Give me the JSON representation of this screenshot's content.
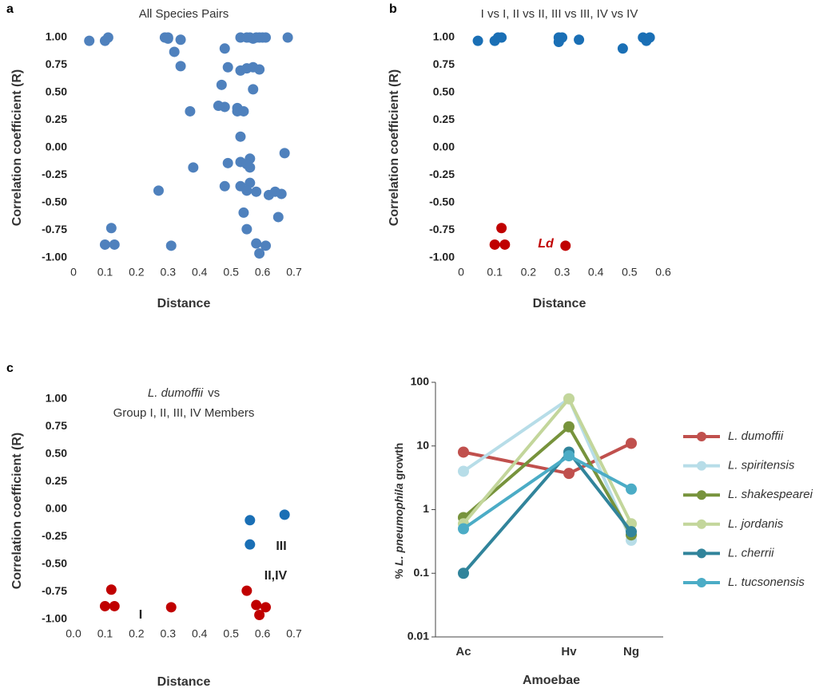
{
  "chart_data": [
    {
      "type": "scatter",
      "label": "a",
      "title": "All Species Pairs",
      "xlabel": "Distance",
      "ylabel": "Correlation coefficient (R)",
      "xlim": [
        0,
        0.7
      ],
      "xticks": [
        0,
        0.1,
        0.2,
        0.3,
        0.4,
        0.5,
        0.6,
        0.7
      ],
      "ylim": [
        -1,
        1
      ],
      "yticks": [
        {
          "value": 1,
          "label": "1.00"
        },
        {
          "value": 0.75,
          "label": "0.75"
        },
        {
          "value": 0.5,
          "label": "0.50"
        },
        {
          "value": 0.25,
          "label": "0.25"
        },
        {
          "value": 0,
          "label": "0.00"
        },
        {
          "value": -0.25,
          "label": "-0.25"
        },
        {
          "value": -0.5,
          "label": "-0.50"
        },
        {
          "value": -0.75,
          "label": "-0.75"
        },
        {
          "value": -1,
          "label": "-1.00"
        }
      ],
      "series": [
        {
          "color": "#4f81bd",
          "x": [
            0.05,
            0.1,
            0.11,
            0.29,
            0.3,
            0.3,
            0.32,
            0.34,
            0.34,
            0.48,
            0.49,
            0.47,
            0.48,
            0.46,
            0.52,
            0.52,
            0.54,
            0.53,
            0.55,
            0.57,
            0.59,
            0.57,
            0.53,
            0.55,
            0.56,
            0.57,
            0.58,
            0.59,
            0.6,
            0.61,
            0.68,
            0.37,
            0.38,
            0.53,
            0.53,
            0.56,
            0.55,
            0.67,
            0.49,
            0.27,
            0.48,
            0.53,
            0.56,
            0.55,
            0.58,
            0.56,
            0.54,
            0.55,
            0.62,
            0.64,
            0.66,
            0.65,
            0.1,
            0.12,
            0.13,
            0.31,
            0.58,
            0.61,
            0.59
          ],
          "values": [
            0.97,
            0.97,
            1.0,
            1.0,
            0.99,
            1.0,
            0.87,
            0.98,
            0.74,
            0.9,
            0.73,
            0.57,
            0.37,
            0.38,
            0.36,
            0.33,
            0.33,
            0.7,
            0.72,
            0.73,
            0.71,
            0.53,
            1.0,
            1.0,
            1.0,
            0.99,
            1.0,
            1.0,
            1.0,
            1.0,
            1.0,
            0.33,
            -0.18,
            0.1,
            -0.13,
            -0.1,
            -0.15,
            -0.05,
            -0.14,
            -0.39,
            -0.35,
            -0.35,
            -0.32,
            -0.39,
            -0.4,
            -0.18,
            -0.59,
            -0.74,
            -0.43,
            -0.4,
            -0.42,
            -0.63,
            -0.88,
            -0.73,
            -0.88,
            -0.89,
            -0.87,
            -0.89,
            -0.96
          ]
        }
      ]
    },
    {
      "type": "scatter",
      "label": "b",
      "title": "I vs I, II vs II, III vs III, IV vs IV",
      "xlabel": "Distance",
      "ylabel": "Correlation coefficient (R)",
      "xlim": [
        0,
        0.6
      ],
      "xticks": [
        0,
        0.1,
        0.2,
        0.3,
        0.4,
        0.5,
        0.6
      ],
      "ylim": [
        -1,
        1
      ],
      "yticks": [
        {
          "value": 1,
          "label": "1.00"
        },
        {
          "value": 0.75,
          "label": "0.75"
        },
        {
          "value": 0.5,
          "label": "0.50"
        },
        {
          "value": 0.25,
          "label": "0.25"
        },
        {
          "value": 0,
          "label": "0.00"
        },
        {
          "value": -0.25,
          "label": "-0.25"
        },
        {
          "value": -0.5,
          "label": "-0.50"
        },
        {
          "value": -0.75,
          "label": "-0.75"
        },
        {
          "value": -1,
          "label": "-1.00"
        }
      ],
      "series": [
        {
          "color": "#1a6fb5",
          "x": [
            0.05,
            0.1,
            0.11,
            0.12,
            0.29,
            0.29,
            0.3,
            0.35,
            0.48,
            0.54,
            0.55,
            0.56
          ],
          "values": [
            0.97,
            0.97,
            1.0,
            1.0,
            1.0,
            0.96,
            1.0,
            0.98,
            0.9,
            1.0,
            0.97,
            1.0
          ]
        },
        {
          "color": "#c00000",
          "x": [
            0.1,
            0.12,
            0.13,
            0.31
          ],
          "values": [
            -0.88,
            -0.73,
            -0.88,
            -0.89
          ]
        }
      ],
      "annotations": [
        "Ld"
      ]
    },
    {
      "type": "scatter",
      "label": "c",
      "title": [
        "L. dumoffii",
        "vs"
      ],
      "subtitle": "Group I, II, III, IV Members",
      "xlabel": "Distance",
      "ylabel": "Correlation coefficient (R)",
      "xlim": [
        0,
        0.7
      ],
      "xticks": [
        {
          "value": 0,
          "label": "0.0"
        },
        0.1,
        0.2,
        0.3,
        0.4,
        0.5,
        0.6,
        0.7
      ],
      "ylim": [
        -1,
        1
      ],
      "yticks": [
        {
          "value": 1,
          "label": "1.00"
        },
        {
          "value": 0.75,
          "label": "0.75"
        },
        {
          "value": 0.5,
          "label": "0.50"
        },
        {
          "value": 0.25,
          "label": "0.25"
        },
        {
          "value": 0,
          "label": "0.00"
        },
        {
          "value": -0.25,
          "label": "-0.25"
        },
        {
          "value": -0.5,
          "label": "-0.50"
        },
        {
          "value": -0.75,
          "label": "-0.75"
        },
        {
          "value": -1,
          "label": "-1.00"
        }
      ],
      "series": [
        {
          "color": "#1a6fb5",
          "x": [
            0.56,
            0.56,
            0.67
          ],
          "values": [
            -0.1,
            -0.32,
            -0.05
          ]
        },
        {
          "color": "#c00000",
          "x": [
            0.1,
            0.12,
            0.13,
            0.31,
            0.55,
            0.58,
            0.61,
            0.59
          ],
          "values": [
            -0.88,
            -0.73,
            -0.88,
            -0.89,
            -0.74,
            -0.87,
            -0.89,
            -0.96
          ]
        }
      ],
      "annotations": [
        "III",
        "II,IV",
        "I"
      ]
    },
    {
      "type": "line",
      "xlabel": "Amoebae",
      "ylabel": [
        "%",
        "L. pneumophila",
        "growth"
      ],
      "log_y": true,
      "legend": "right",
      "categories": [
        "Ac",
        "Hv",
        "Ng"
      ],
      "ylim": [
        0.01,
        100
      ],
      "yticks": [
        0.01,
        0.1,
        1,
        10,
        100
      ],
      "series": [
        {
          "name": "L. dumoffii",
          "color": "#c0504d",
          "values": [
            8,
            3.7,
            11
          ]
        },
        {
          "name": "L. spiritensis",
          "color": "#b7dde8",
          "values": [
            4,
            55,
            0.33
          ]
        },
        {
          "name": "L. shakespearei",
          "color": "#77933c",
          "values": [
            0.75,
            20,
            0.4
          ]
        },
        {
          "name": "L. jordanis",
          "color": "#c3d69b",
          "values": [
            0.6,
            55,
            0.6
          ]
        },
        {
          "name": "L. cherrii",
          "color": "#31849b",
          "values": [
            0.1,
            8,
            0.45
          ]
        },
        {
          "name": "L. tucsonensis",
          "color": "#4bacc6",
          "values": [
            0.5,
            7,
            2.1
          ]
        }
      ]
    }
  ]
}
